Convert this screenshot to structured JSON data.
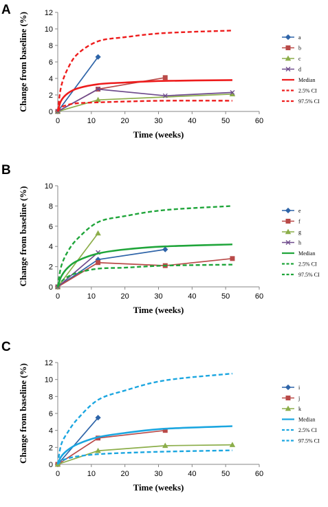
{
  "chart_data": [
    {
      "type": "line",
      "panel_label": "A",
      "xlabel": "Time (weeks)",
      "ylabel": "Change from baseline (%)",
      "xlim": [
        0,
        60
      ],
      "ylim": [
        0,
        12
      ],
      "xticks": [
        0,
        10,
        20,
        30,
        40,
        50,
        60
      ],
      "yticks": [
        0,
        2,
        4,
        6,
        8,
        10,
        12
      ],
      "grid": false,
      "legend_position": "right",
      "series": [
        {
          "name": "a",
          "color": "#2e64a8",
          "marker": "diamond",
          "style": "solid",
          "x": [
            0,
            12
          ],
          "y": [
            0,
            6.6
          ]
        },
        {
          "name": "b",
          "color": "#b94a48",
          "marker": "square",
          "style": "solid",
          "x": [
            0,
            12,
            32
          ],
          "y": [
            0,
            2.7,
            4.1
          ]
        },
        {
          "name": "c",
          "color": "#8cae4a",
          "marker": "triangle",
          "style": "solid",
          "x": [
            0,
            12,
            52
          ],
          "y": [
            0,
            1.4,
            2.1
          ]
        },
        {
          "name": "d",
          "color": "#6e4b8c",
          "marker": "x",
          "style": "solid",
          "x": [
            0,
            12,
            32,
            52
          ],
          "y": [
            0,
            2.7,
            1.9,
            2.3
          ]
        },
        {
          "name": "Median",
          "color": "#ee1c1c",
          "marker": "none",
          "style": "solid",
          "x": [
            0,
            1,
            3,
            6,
            12,
            20,
            32,
            52
          ],
          "y": [
            0,
            1.3,
            2.2,
            2.8,
            3.3,
            3.5,
            3.7,
            3.8
          ]
        },
        {
          "name": "2.5% CI",
          "color": "#ee1c1c",
          "marker": "none",
          "style": "dashed",
          "x": [
            0,
            1,
            3,
            6,
            12,
            20,
            32,
            52
          ],
          "y": [
            0,
            0.5,
            0.8,
            1.0,
            1.1,
            1.2,
            1.3,
            1.3
          ]
        },
        {
          "name": "97.5% CI",
          "color": "#ee1c1c",
          "marker": "none",
          "style": "dashed",
          "x": [
            0,
            1,
            3,
            6,
            12,
            20,
            32,
            52
          ],
          "y": [
            0,
            3.0,
            5.2,
            7.0,
            8.5,
            9.0,
            9.5,
            9.8
          ]
        }
      ]
    },
    {
      "type": "line",
      "panel_label": "B",
      "xlabel": "Time (weeks)",
      "ylabel": "Change from baseline (%)",
      "xlim": [
        0,
        60
      ],
      "ylim": [
        0,
        10
      ],
      "xticks": [
        0,
        10,
        20,
        30,
        40,
        50,
        60
      ],
      "yticks": [
        0,
        2,
        4,
        6,
        8,
        10
      ],
      "grid": false,
      "legend_position": "right",
      "series": [
        {
          "name": "e",
          "color": "#2e64a8",
          "marker": "diamond",
          "style": "solid",
          "x": [
            0,
            12,
            32
          ],
          "y": [
            0,
            2.7,
            3.7
          ]
        },
        {
          "name": "f",
          "color": "#b94a48",
          "marker": "square",
          "style": "solid",
          "x": [
            0,
            12,
            32,
            52
          ],
          "y": [
            0,
            2.4,
            2.1,
            2.8
          ]
        },
        {
          "name": "g",
          "color": "#8cae4a",
          "marker": "triangle",
          "style": "solid",
          "x": [
            0,
            12
          ],
          "y": [
            0,
            5.3
          ]
        },
        {
          "name": "h",
          "color": "#6e4b8c",
          "marker": "x",
          "style": "solid",
          "x": [
            0,
            12
          ],
          "y": [
            0,
            3.4
          ]
        },
        {
          "name": "Median",
          "color": "#1fa53a",
          "marker": "none",
          "style": "solid",
          "x": [
            0,
            1,
            3,
            6,
            12,
            20,
            32,
            52
          ],
          "y": [
            0,
            1.0,
            1.9,
            2.6,
            3.3,
            3.7,
            4.0,
            4.2
          ]
        },
        {
          "name": "2.5% CI",
          "color": "#1fa53a",
          "marker": "none",
          "style": "dashed",
          "x": [
            0,
            1,
            3,
            6,
            12,
            20,
            32,
            52
          ],
          "y": [
            0,
            0.5,
            1.0,
            1.4,
            1.8,
            1.9,
            2.1,
            2.2
          ]
        },
        {
          "name": "97.5% CI",
          "color": "#1fa53a",
          "marker": "none",
          "style": "dashed",
          "x": [
            0,
            1,
            3,
            6,
            12,
            20,
            32,
            52
          ],
          "y": [
            0,
            2.0,
            3.5,
            4.8,
            6.4,
            7.0,
            7.6,
            8.0
          ]
        }
      ]
    },
    {
      "type": "line",
      "panel_label": "C",
      "xlabel": "Time (weeks)",
      "ylabel": "Change from baseline (%)",
      "xlim": [
        0,
        60
      ],
      "ylim": [
        0,
        12
      ],
      "xticks": [
        0,
        10,
        20,
        30,
        40,
        50,
        60
      ],
      "yticks": [
        0,
        2,
        4,
        6,
        8,
        10,
        12
      ],
      "grid": false,
      "legend_position": "right",
      "series": [
        {
          "name": "i",
          "color": "#2e64a8",
          "marker": "diamond",
          "style": "solid",
          "x": [
            0,
            12
          ],
          "y": [
            0,
            5.5
          ]
        },
        {
          "name": "j",
          "color": "#b94a48",
          "marker": "square",
          "style": "solid",
          "x": [
            0,
            12,
            32
          ],
          "y": [
            0,
            3.1,
            4.0
          ]
        },
        {
          "name": "k",
          "color": "#8cae4a",
          "marker": "triangle",
          "style": "solid",
          "x": [
            0,
            12,
            32,
            52
          ],
          "y": [
            0,
            1.6,
            2.2,
            2.3
          ]
        },
        {
          "name": "Median",
          "color": "#1ba6e0",
          "marker": "none",
          "style": "solid",
          "x": [
            0,
            1,
            3,
            6,
            12,
            20,
            32,
            52
          ],
          "y": [
            0,
            0.9,
            1.7,
            2.4,
            3.2,
            3.7,
            4.2,
            4.5
          ]
        },
        {
          "name": "2.5% CI",
          "color": "#1ba6e0",
          "marker": "none",
          "style": "dashed",
          "x": [
            0,
            1,
            3,
            6,
            12,
            20,
            32,
            52
          ],
          "y": [
            0,
            0.4,
            0.7,
            0.95,
            1.2,
            1.35,
            1.5,
            1.65
          ]
        },
        {
          "name": "97.5% CI",
          "color": "#1ba6e0",
          "marker": "none",
          "style": "dashed",
          "x": [
            0,
            1,
            3,
            6,
            12,
            20,
            32,
            52
          ],
          "y": [
            0,
            2.3,
            3.8,
            5.4,
            7.6,
            8.7,
            9.9,
            10.7
          ]
        }
      ]
    }
  ]
}
